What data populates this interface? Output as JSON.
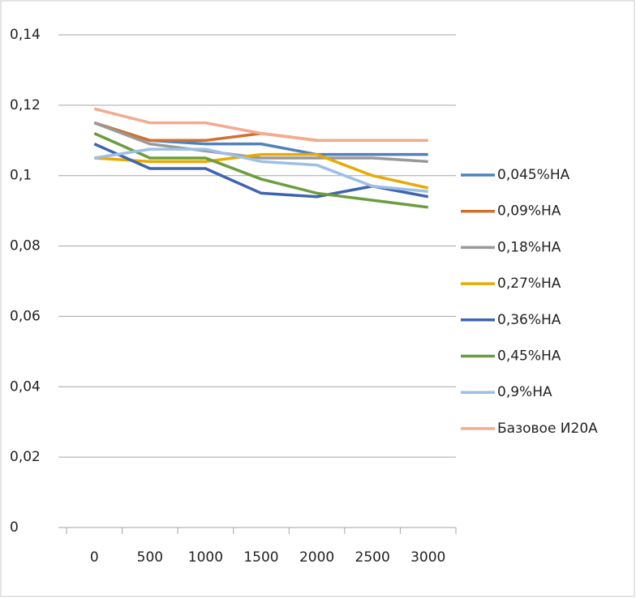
{
  "chart_data": {
    "type": "line",
    "categories": [
      0,
      500,
      1000,
      1500,
      2000,
      2500,
      3000
    ],
    "series": [
      {
        "name": "0,045%HA",
        "color": "#4f81bd",
        "values": [
          0.115,
          0.11,
          0.109,
          0.109,
          0.106,
          0.106,
          0.106
        ]
      },
      {
        "name": "0,09%HA",
        "color": "#d0702f",
        "values": [
          0.115,
          0.11,
          0.11,
          0.112,
          0.11,
          0.11,
          0.11
        ]
      },
      {
        "name": "0,18%HA",
        "color": "#999999",
        "values": [
          0.115,
          0.109,
          0.107,
          0.105,
          0.105,
          0.105,
          0.104
        ]
      },
      {
        "name": "0,27%HA",
        "color": "#e8a900",
        "values": [
          0.105,
          0.104,
          0.104,
          0.106,
          0.106,
          0.1,
          0.0965
        ]
      },
      {
        "name": "0,36%HA",
        "color": "#3e64b1",
        "values": [
          0.109,
          0.102,
          0.102,
          0.095,
          0.094,
          0.097,
          0.094
        ]
      },
      {
        "name": "0,45%HA",
        "color": "#6b9d3f",
        "values": [
          0.112,
          0.105,
          0.105,
          0.099,
          0.095,
          0.093,
          0.091
        ]
      },
      {
        "name": "0,9%HA",
        "color": "#9dbfe6",
        "values": [
          0.105,
          0.1075,
          0.1075,
          0.104,
          0.103,
          0.097,
          0.0955
        ]
      },
      {
        "name": "Базовое И20А",
        "color": "#f3aa8f",
        "values": [
          0.119,
          0.115,
          0.115,
          0.112,
          0.11,
          0.11,
          0.11
        ]
      }
    ],
    "ylim": [
      0,
      0.14
    ],
    "yticks": [
      0,
      {
        "value": 0.02,
        "label": "0,02"
      },
      {
        "value": 0.04,
        "label": "0,04"
      },
      {
        "value": 0.06,
        "label": "0,06"
      },
      {
        "value": 0.08,
        "label": "0,08"
      },
      {
        "value": 0.1,
        "label": "0,1"
      },
      {
        "value": 0.12,
        "label": "0,12"
      },
      {
        "value": 0.14,
        "label": "0,14"
      }
    ],
    "grid": true,
    "legend": "right"
  }
}
